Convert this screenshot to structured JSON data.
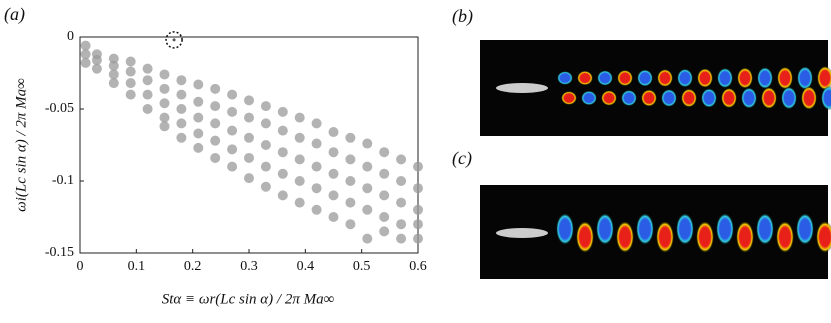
{
  "chart_data": {
    "type": "scatter",
    "panel_label": "(a)",
    "x_label": "Stα ≡ ωr(Lc sin α) / 2π Ma∞",
    "y_label": "ωi(Lc sin α) / 2π Ma∞",
    "xlim": [
      0,
      0.6
    ],
    "ylim": [
      -0.15,
      0
    ],
    "xticks": [
      0,
      0.1,
      0.2,
      0.3,
      0.4,
      0.5,
      0.6
    ],
    "yticks": [
      0,
      -0.05,
      -0.1,
      -0.15
    ],
    "color": "#999999",
    "x": [
      0.01,
      0.01,
      0.01,
      0.03,
      0.03,
      0.03,
      0.06,
      0.06,
      0.06,
      0.06,
      0.09,
      0.09,
      0.09,
      0.09,
      0.12,
      0.12,
      0.12,
      0.12,
      0.15,
      0.15,
      0.15,
      0.15,
      0.15,
      0.18,
      0.18,
      0.18,
      0.18,
      0.18,
      0.21,
      0.21,
      0.21,
      0.21,
      0.21,
      0.24,
      0.24,
      0.24,
      0.24,
      0.24,
      0.27,
      0.27,
      0.27,
      0.27,
      0.27,
      0.3,
      0.3,
      0.3,
      0.3,
      0.3,
      0.33,
      0.33,
      0.33,
      0.33,
      0.33,
      0.36,
      0.36,
      0.36,
      0.36,
      0.36,
      0.39,
      0.39,
      0.39,
      0.39,
      0.39,
      0.42,
      0.42,
      0.42,
      0.42,
      0.42,
      0.45,
      0.45,
      0.45,
      0.45,
      0.45,
      0.48,
      0.48,
      0.48,
      0.48,
      0.48,
      0.51,
      0.51,
      0.51,
      0.51,
      0.51,
      0.54,
      0.54,
      0.54,
      0.54,
      0.54,
      0.57,
      0.57,
      0.57,
      0.57,
      0.57,
      0.6,
      0.6,
      0.6,
      0.6,
      0.6
    ],
    "y": [
      -0.006,
      -0.012,
      -0.018,
      -0.012,
      -0.016,
      -0.022,
      -0.015,
      -0.02,
      -0.026,
      -0.032,
      -0.017,
      -0.024,
      -0.032,
      -0.04,
      -0.022,
      -0.03,
      -0.04,
      -0.05,
      -0.026,
      -0.036,
      -0.046,
      -0.056,
      -0.062,
      -0.03,
      -0.04,
      -0.05,
      -0.06,
      -0.07,
      -0.033,
      -0.045,
      -0.056,
      -0.067,
      -0.077,
      -0.036,
      -0.048,
      -0.06,
      -0.072,
      -0.084,
      -0.04,
      -0.052,
      -0.065,
      -0.078,
      -0.09,
      -0.044,
      -0.056,
      -0.07,
      -0.084,
      -0.098,
      -0.048,
      -0.06,
      -0.075,
      -0.09,
      -0.104,
      -0.052,
      -0.065,
      -0.08,
      -0.095,
      -0.11,
      -0.056,
      -0.07,
      -0.085,
      -0.1,
      -0.115,
      -0.06,
      -0.074,
      -0.09,
      -0.105,
      -0.12,
      -0.066,
      -0.08,
      -0.095,
      -0.11,
      -0.125,
      -0.07,
      -0.085,
      -0.1,
      -0.115,
      -0.13,
      -0.074,
      -0.09,
      -0.105,
      -0.12,
      -0.14,
      -0.08,
      -0.095,
      -0.11,
      -0.125,
      -0.135,
      -0.085,
      -0.1,
      -0.115,
      -0.13,
      -0.14,
      -0.09,
      -0.105,
      -0.12,
      -0.13,
      -0.14
    ],
    "highlight": {
      "x": 0.167,
      "y": -0.002
    }
  },
  "panels": {
    "b": "(b)",
    "c": "(c)"
  }
}
